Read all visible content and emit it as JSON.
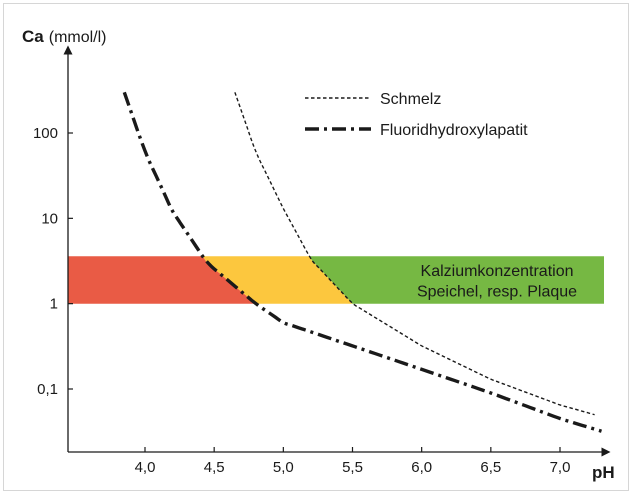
{
  "chart_data": {
    "type": "line",
    "title": "",
    "ylabel_var": "Ca",
    "ylabel_unit": "(mmol/l)",
    "xlabel": "pH",
    "yscale": "log",
    "xlim": [
      3.5,
      7.4
    ],
    "ylim": [
      0.022,
      400
    ],
    "x_ticks": [
      4.0,
      4.5,
      5.0,
      5.5,
      6.0,
      6.5,
      7.0
    ],
    "x_tick_labels": [
      "4,0",
      "4,5",
      "5,0",
      "5,5",
      "6,0",
      "6,5",
      "7,0"
    ],
    "y_ticks": [
      0.1,
      1,
      10,
      100
    ],
    "y_tick_labels": [
      "0,1",
      "1",
      "10",
      "100"
    ],
    "grid": false,
    "legend_position": "top-right",
    "series": [
      {
        "name": "Schmelz",
        "line_style": "dashed",
        "x": [
          4.65,
          4.8,
          5.0,
          5.2,
          5.5,
          6.0,
          6.5,
          7.0,
          7.25
        ],
        "y": [
          300,
          60,
          13,
          3.3,
          1.0,
          0.32,
          0.13,
          0.065,
          0.05
        ]
      },
      {
        "name": "Fluoridhydroxylapatit",
        "line_style": "dash-dot",
        "x": [
          3.85,
          4.0,
          4.2,
          4.45,
          4.8,
          5.0,
          5.5,
          6.0,
          6.5,
          7.0,
          7.3
        ],
        "y": [
          300,
          60,
          12,
          3.0,
          1.0,
          0.6,
          0.32,
          0.17,
          0.09,
          0.045,
          0.032
        ]
      }
    ],
    "band": {
      "y_min": 1,
      "y_max": 3.6,
      "label_line1": "Kalziumkonzentration",
      "label_line2": "Speichel, resp. Plaque",
      "colors": {
        "left": "#e95b45",
        "middle": "#fcc73e",
        "right": "#76b843"
      }
    }
  }
}
